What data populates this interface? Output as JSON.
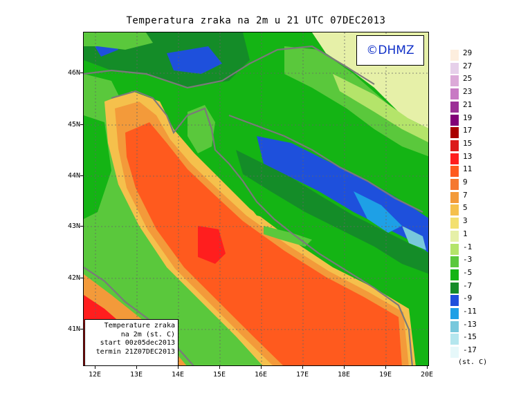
{
  "title": "Temperatura zraka na 2m u 21 UTC 07DEC2013",
  "logo": "©DHMZ",
  "info_box": {
    "line1": "Temperature zraka",
    "line2": "na 2m (st. C)",
    "line3": "start 00z05dec2013",
    "line4": "termin 21Z07DEC2013"
  },
  "lat_labels": [
    "46N",
    "45N",
    "44N",
    "43N",
    "42N",
    "41N"
  ],
  "lon_labels": [
    "12E",
    "13E",
    "14E",
    "15E",
    "16E",
    "17E",
    "18E",
    "19E",
    "20E"
  ],
  "legend": {
    "labels": [
      "29",
      "27",
      "25",
      "23",
      "21",
      "19",
      "17",
      "15",
      "13",
      "11",
      "9",
      "7",
      "5",
      "3",
      "1",
      "-1",
      "-3",
      "-5",
      "-7",
      "-9",
      "-11",
      "-13",
      "-15",
      "-17"
    ],
    "colors": [
      "#fdeede",
      "#e6d0ea",
      "#dcaad8",
      "#c87ac4",
      "#9c3096",
      "#820078",
      "#aa0000",
      "#dc1a1a",
      "#ff1e1e",
      "#ff5a1e",
      "#f57830",
      "#f39a3a",
      "#f5c04c",
      "#f3e070",
      "#e6f0a8",
      "#b4e46a",
      "#5ac83c",
      "#14b414",
      "#148c28",
      "#1e50dc",
      "#1ea0e6",
      "#78c8dc",
      "#b4e6ee",
      "#e6f8fa"
    ],
    "unit": "(st. C)"
  },
  "colors": {
    "sea_warm": "#ff5a1e",
    "sea_hot": "#ff1e1e",
    "coast_orange": "#f39a3a",
    "coast_yellow": "#f5c04c",
    "land_green": "#5ac83c",
    "land_dark_green": "#14b414",
    "land_forest": "#148c28",
    "land_light": "#b4e46a",
    "plain_pale": "#e6f0a8",
    "mountain_blue": "#1e50dc",
    "mountain_cyan": "#1ea0e6",
    "border_gray": "#7a7a7a",
    "grid": "#666666"
  }
}
